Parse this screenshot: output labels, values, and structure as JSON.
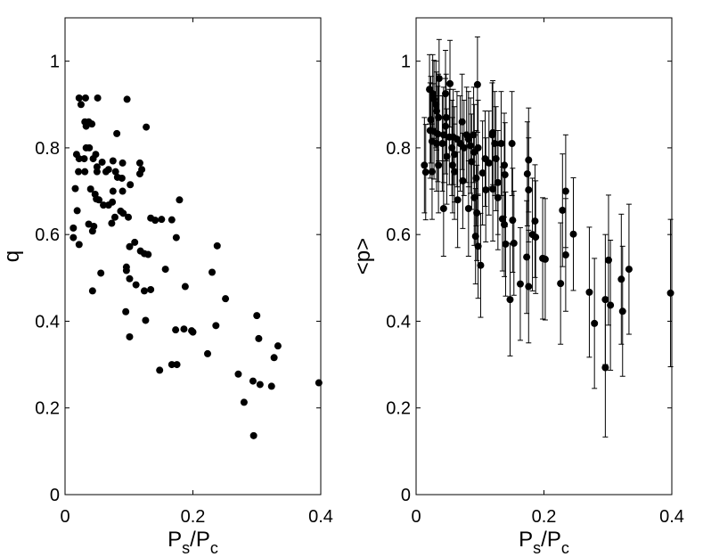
{
  "chart_data": [
    {
      "type": "scatter",
      "xlabel": "P_s/P_c",
      "ylabel": "q",
      "xlim": [
        0,
        0.4
      ],
      "ylim": [
        0,
        1.1
      ],
      "xticks": [
        0,
        0.2,
        0.4
      ],
      "xtick_labels": [
        "0",
        "0.2",
        "0.4"
      ],
      "yticks": [
        0,
        0.2,
        0.4,
        0.6,
        0.8,
        1
      ],
      "ytick_labels": [
        "0",
        "0.2",
        "0.4",
        "0.6",
        "0.8",
        "1"
      ],
      "grid": false,
      "marker_color": "#000000",
      "points": [
        [
          0.022,
          0.915
        ],
        [
          0.032,
          0.915
        ],
        [
          0.051,
          0.915
        ],
        [
          0.097,
          0.912
        ],
        [
          0.025,
          0.9
        ],
        [
          0.031,
          0.86
        ],
        [
          0.037,
          0.86
        ],
        [
          0.033,
          0.85
        ],
        [
          0.042,
          0.855
        ],
        [
          0.127,
          0.848
        ],
        [
          0.081,
          0.833
        ],
        [
          0.033,
          0.8
        ],
        [
          0.038,
          0.8
        ],
        [
          0.018,
          0.785
        ],
        [
          0.048,
          0.785
        ],
        [
          0.022,
          0.775
        ],
        [
          0.03,
          0.775
        ],
        [
          0.044,
          0.775
        ],
        [
          0.058,
          0.767
        ],
        [
          0.075,
          0.77
        ],
        [
          0.09,
          0.765
        ],
        [
          0.117,
          0.765
        ],
        [
          0.12,
          0.75
        ],
        [
          0.05,
          0.756
        ],
        [
          0.068,
          0.75
        ],
        [
          0.021,
          0.745
        ],
        [
          0.031,
          0.745
        ],
        [
          0.05,
          0.745
        ],
        [
          0.064,
          0.745
        ],
        [
          0.079,
          0.745
        ],
        [
          0.117,
          0.74
        ],
        [
          0.082,
          0.732
        ],
        [
          0.089,
          0.73
        ],
        [
          0.102,
          0.715
        ],
        [
          0.016,
          0.706
        ],
        [
          0.04,
          0.705
        ],
        [
          0.075,
          0.7
        ],
        [
          0.09,
          0.7
        ],
        [
          0.047,
          0.693
        ],
        [
          0.049,
          0.682
        ],
        [
          0.053,
          0.68
        ],
        [
          0.074,
          0.675
        ],
        [
          0.179,
          0.68
        ],
        [
          0.06,
          0.668
        ],
        [
          0.068,
          0.668
        ],
        [
          0.019,
          0.655
        ],
        [
          0.087,
          0.654
        ],
        [
          0.091,
          0.649
        ],
        [
          0.078,
          0.64
        ],
        [
          0.099,
          0.64
        ],
        [
          0.134,
          0.638
        ],
        [
          0.141,
          0.633
        ],
        [
          0.151,
          0.635
        ],
        [
          0.167,
          0.634
        ],
        [
          0.073,
          0.626
        ],
        [
          0.037,
          0.624
        ],
        [
          0.045,
          0.619
        ],
        [
          0.013,
          0.615
        ],
        [
          0.043,
          0.608
        ],
        [
          0.013,
          0.593
        ],
        [
          0.174,
          0.593
        ],
        [
          0.022,
          0.577
        ],
        [
          0.109,
          0.582
        ],
        [
          0.101,
          0.572
        ],
        [
          0.238,
          0.574
        ],
        [
          0.118,
          0.562
        ],
        [
          0.096,
          0.525
        ],
        [
          0.124,
          0.556
        ],
        [
          0.13,
          0.554
        ],
        [
          0.056,
          0.511
        ],
        [
          0.096,
          0.517
        ],
        [
          0.101,
          0.498
        ],
        [
          0.157,
          0.52
        ],
        [
          0.23,
          0.513
        ],
        [
          0.134,
          0.473
        ],
        [
          0.043,
          0.47
        ],
        [
          0.124,
          0.47
        ],
        [
          0.111,
          0.484
        ],
        [
          0.188,
          0.48
        ],
        [
          0.251,
          0.452
        ],
        [
          0.095,
          0.422
        ],
        [
          0.126,
          0.402
        ],
        [
          0.3,
          0.413
        ],
        [
          0.236,
          0.39
        ],
        [
          0.101,
          0.364
        ],
        [
          0.173,
          0.38
        ],
        [
          0.186,
          0.382
        ],
        [
          0.198,
          0.378
        ],
        [
          0.2,
          0.375
        ],
        [
          0.303,
          0.36
        ],
        [
          0.333,
          0.343
        ],
        [
          0.223,
          0.325
        ],
        [
          0.327,
          0.316
        ],
        [
          0.167,
          0.3
        ],
        [
          0.175,
          0.3
        ],
        [
          0.148,
          0.287
        ],
        [
          0.271,
          0.278
        ],
        [
          0.397,
          0.258
        ],
        [
          0.294,
          0.262
        ],
        [
          0.305,
          0.254
        ],
        [
          0.323,
          0.25
        ],
        [
          0.28,
          0.213
        ],
        [
          0.295,
          0.136
        ]
      ]
    },
    {
      "type": "scatter",
      "xlabel": "P_s/P_c",
      "ylabel": "<p>",
      "xlim": [
        0,
        0.4
      ],
      "ylim": [
        0,
        1.1
      ],
      "xticks": [
        0,
        0.2,
        0.4
      ],
      "xtick_labels": [
        "0",
        "0.2",
        "0.4"
      ],
      "yticks": [
        0,
        0.2,
        0.4,
        0.6,
        0.8,
        1
      ],
      "ytick_labels": [
        "0",
        "0.2",
        "0.4",
        "0.6",
        "0.8",
        "1"
      ],
      "grid": false,
      "marker_color": "#000000",
      "error_bars": true,
      "points": [
        [
          0.021,
          0.935,
          0.08
        ],
        [
          0.026,
          0.925,
          0.09
        ],
        [
          0.036,
          0.96,
          0.09
        ],
        [
          0.028,
          0.912,
          0.09
        ],
        [
          0.031,
          0.9,
          0.1
        ],
        [
          0.032,
          0.885,
          0.09
        ],
        [
          0.046,
          0.925,
          0.1
        ],
        [
          0.023,
          0.865,
          0.1
        ],
        [
          0.035,
          0.87,
          0.1
        ],
        [
          0.047,
          0.87,
          0.1
        ],
        [
          0.053,
          0.948,
          0.1
        ],
        [
          0.096,
          0.946,
          0.11
        ],
        [
          0.072,
          0.86,
          0.11
        ],
        [
          0.046,
          0.85,
          0.11
        ],
        [
          0.022,
          0.84,
          0.11
        ],
        [
          0.028,
          0.838,
          0.11
        ],
        [
          0.034,
          0.832,
          0.11
        ],
        [
          0.043,
          0.83,
          0.11
        ],
        [
          0.052,
          0.825,
          0.11
        ],
        [
          0.058,
          0.825,
          0.11
        ],
        [
          0.064,
          0.82,
          0.11
        ],
        [
          0.079,
          0.83,
          0.11
        ],
        [
          0.082,
          0.82,
          0.11
        ],
        [
          0.09,
          0.83,
          0.11
        ],
        [
          0.12,
          0.835,
          0.12
        ],
        [
          0.119,
          0.83,
          0.12
        ],
        [
          0.025,
          0.815,
          0.11
        ],
        [
          0.032,
          0.81,
          0.11
        ],
        [
          0.041,
          0.81,
          0.11
        ],
        [
          0.056,
          0.8,
          0.11
        ],
        [
          0.069,
          0.81,
          0.11
        ],
        [
          0.075,
          0.8,
          0.11
        ],
        [
          0.085,
          0.805,
          0.11
        ],
        [
          0.097,
          0.8,
          0.11
        ],
        [
          0.123,
          0.81,
          0.12
        ],
        [
          0.133,
          0.81,
          0.12
        ],
        [
          0.15,
          0.81,
          0.12
        ],
        [
          0.048,
          0.78,
          0.11
        ],
        [
          0.06,
          0.785,
          0.11
        ],
        [
          0.091,
          0.79,
          0.11
        ],
        [
          0.108,
          0.775,
          0.11
        ],
        [
          0.125,
          0.775,
          0.12
        ],
        [
          0.013,
          0.76,
          0.11
        ],
        [
          0.035,
          0.76,
          0.11
        ],
        [
          0.057,
          0.76,
          0.11
        ],
        [
          0.087,
          0.768,
          0.11
        ],
        [
          0.114,
          0.765,
          0.12
        ],
        [
          0.138,
          0.76,
          0.12
        ],
        [
          0.176,
          0.772,
          0.12
        ],
        [
          0.015,
          0.744,
          0.11
        ],
        [
          0.025,
          0.745,
          0.11
        ],
        [
          0.06,
          0.745,
          0.11
        ],
        [
          0.104,
          0.742,
          0.12
        ],
        [
          0.139,
          0.738,
          0.12
        ],
        [
          0.174,
          0.74,
          0.12
        ],
        [
          0.094,
          0.73,
          0.11
        ],
        [
          0.073,
          0.724,
          0.11
        ],
        [
          0.128,
          0.72,
          0.12
        ],
        [
          0.109,
          0.703,
          0.12
        ],
        [
          0.12,
          0.705,
          0.12
        ],
        [
          0.176,
          0.703,
          0.12
        ],
        [
          0.234,
          0.7,
          0.13
        ],
        [
          0.091,
          0.685,
          0.11
        ],
        [
          0.128,
          0.685,
          0.12
        ],
        [
          0.065,
          0.68,
          0.11
        ],
        [
          0.043,
          0.66,
          0.11
        ],
        [
          0.082,
          0.66,
          0.11
        ],
        [
          0.095,
          0.65,
          0.11
        ],
        [
          0.229,
          0.656,
          0.13
        ],
        [
          0.135,
          0.636,
          0.12
        ],
        [
          0.151,
          0.633,
          0.12
        ],
        [
          0.186,
          0.631,
          0.13
        ],
        [
          0.138,
          0.623,
          0.12
        ],
        [
          0.182,
          0.6,
          0.13
        ],
        [
          0.246,
          0.601,
          0.13
        ],
        [
          0.093,
          0.596,
          0.11
        ],
        [
          0.153,
          0.58,
          0.12
        ],
        [
          0.14,
          0.578,
          0.12
        ],
        [
          0.187,
          0.594,
          0.13
        ],
        [
          0.097,
          0.573,
          0.12
        ],
        [
          0.198,
          0.545,
          0.14
        ],
        [
          0.202,
          0.543,
          0.14
        ],
        [
          0.173,
          0.548,
          0.13
        ],
        [
          0.234,
          0.553,
          0.13
        ],
        [
          0.101,
          0.529,
          0.12
        ],
        [
          0.333,
          0.52,
          0.15
        ],
        [
          0.321,
          0.497,
          0.15
        ],
        [
          0.301,
          0.541,
          0.15
        ],
        [
          0.163,
          0.486,
          0.13
        ],
        [
          0.176,
          0.48,
          0.13
        ],
        [
          0.226,
          0.487,
          0.14
        ],
        [
          0.271,
          0.467,
          0.15
        ],
        [
          0.398,
          0.465,
          0.17
        ],
        [
          0.147,
          0.45,
          0.13
        ],
        [
          0.296,
          0.45,
          0.15
        ],
        [
          0.304,
          0.437,
          0.15
        ],
        [
          0.323,
          0.423,
          0.15
        ],
        [
          0.279,
          0.395,
          0.15
        ],
        [
          0.296,
          0.293,
          0.16
        ]
      ]
    }
  ]
}
